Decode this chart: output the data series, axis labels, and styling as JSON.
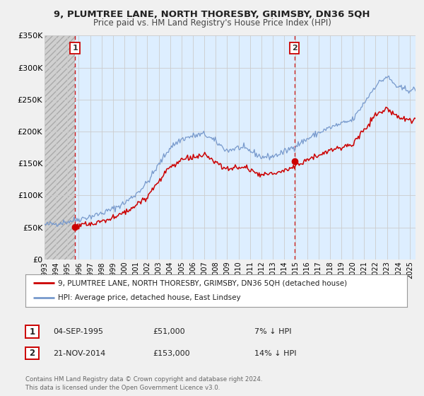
{
  "title": "9, PLUMTREE LANE, NORTH THORESBY, GRIMSBY, DN36 5QH",
  "subtitle": "Price paid vs. HM Land Registry's House Price Index (HPI)",
  "legend_label_red": "9, PLUMTREE LANE, NORTH THORESBY, GRIMSBY, DN36 5QH (detached house)",
  "legend_label_blue": "HPI: Average price, detached house, East Lindsey",
  "annotation1_date": "04-SEP-1995",
  "annotation1_price": "£51,000",
  "annotation1_hpi": "7% ↓ HPI",
  "annotation2_date": "21-NOV-2014",
  "annotation2_price": "£153,000",
  "annotation2_hpi": "14% ↓ HPI",
  "footer1": "Contains HM Land Registry data © Crown copyright and database right 2024.",
  "footer2": "This data is licensed under the Open Government Licence v3.0.",
  "sale1_year": 1995.67,
  "sale1_value": 51000,
  "sale2_year": 2014.89,
  "sale2_value": 153000,
  "color_red": "#cc0000",
  "color_blue": "#7799cc",
  "color_dashed": "#cc0000",
  "ylim": [
    0,
    350000
  ],
  "yticks": [
    0,
    50000,
    100000,
    150000,
    200000,
    250000,
    300000,
    350000
  ],
  "ytick_labels": [
    "£0",
    "£50K",
    "£100K",
    "£150K",
    "£200K",
    "£250K",
    "£300K",
    "£350K"
  ],
  "xlim_start": 1993.0,
  "xlim_end": 2025.5,
  "background_color": "#f0f0f0",
  "plot_bg_color": "#ddeeff",
  "hatch_bg_color": "#d8d8d8",
  "grid_color": "#cccccc",
  "hpi_years": [
    1993,
    1994,
    1995,
    1996,
    1997,
    1998,
    1999,
    2000,
    2001,
    2002,
    2003,
    2004,
    2005,
    2006,
    2007,
    2008,
    2009,
    2010,
    2011,
    2012,
    2013,
    2014,
    2015,
    2016,
    2017,
    2018,
    2019,
    2020,
    2021,
    2022,
    2023,
    2024,
    2025
  ],
  "hpi_values": [
    54000,
    56000,
    59000,
    63000,
    67000,
    72000,
    79000,
    88000,
    102000,
    120000,
    148000,
    175000,
    188000,
    193000,
    196000,
    184000,
    170000,
    175000,
    170000,
    160000,
    161000,
    168000,
    178000,
    188000,
    198000,
    206000,
    212000,
    218000,
    245000,
    272000,
    286000,
    268000,
    265000
  ],
  "prop_scale": 0.864,
  "noise_seed": 42
}
